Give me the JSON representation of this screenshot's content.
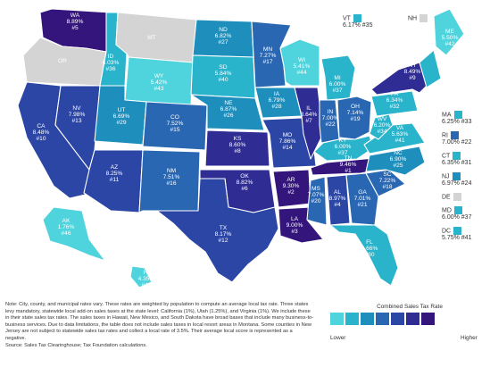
{
  "colors": {
    "c1": "#4fd3dc",
    "c2": "#29b4cb",
    "c3": "#1e8fbc",
    "c4": "#2a67b3",
    "c5": "#2c46a6",
    "c6": "#2f2c93",
    "c7": "#34157b",
    "none": "#d4d4d4",
    "bg": "#ffffff"
  },
  "states": [
    {
      "abbr": "WA",
      "rate": "8.89%",
      "rank": "#5"
    },
    {
      "abbr": "OR",
      "rate": "",
      "rank": ""
    },
    {
      "abbr": "CA",
      "rate": "8.48%",
      "rank": "#10"
    },
    {
      "abbr": "NV",
      "rate": "7.98%",
      "rank": "#13"
    },
    {
      "abbr": "ID",
      "rate": "6.03%",
      "rank": "#36"
    },
    {
      "abbr": "MT",
      "rate": "",
      "rank": ""
    },
    {
      "abbr": "WY",
      "rate": "5.42%",
      "rank": "#43"
    },
    {
      "abbr": "UT",
      "rate": "6.69%",
      "rank": "#29"
    },
    {
      "abbr": "AZ",
      "rate": "8.25%",
      "rank": "#11"
    },
    {
      "abbr": "CO",
      "rate": "7.52%",
      "rank": "#15"
    },
    {
      "abbr": "NM",
      "rate": "7.51%",
      "rank": "#16"
    },
    {
      "abbr": "ND",
      "rate": "6.82%",
      "rank": "#27"
    },
    {
      "abbr": "SD",
      "rate": "5.84%",
      "rank": "#40"
    },
    {
      "abbr": "NE",
      "rate": "6.87%",
      "rank": "#26"
    },
    {
      "abbr": "KS",
      "rate": "8.60%",
      "rank": "#8"
    },
    {
      "abbr": "OK",
      "rate": "8.82%",
      "rank": "#6"
    },
    {
      "abbr": "TX",
      "rate": "8.17%",
      "rank": "#12"
    },
    {
      "abbr": "MN",
      "rate": "7.27%",
      "rank": "#17"
    },
    {
      "abbr": "IA",
      "rate": "6.79%",
      "rank": "#28"
    },
    {
      "abbr": "MO",
      "rate": "7.86%",
      "rank": "#14"
    },
    {
      "abbr": "AR",
      "rate": "9.30%",
      "rank": "#2"
    },
    {
      "abbr": "LA",
      "rate": "9.00%",
      "rank": "#3"
    },
    {
      "abbr": "WI",
      "rate": "5.41%",
      "rank": "#44"
    },
    {
      "abbr": "IL",
      "rate": "8.64%",
      "rank": "#7"
    },
    {
      "abbr": "MI",
      "rate": "6.00%",
      "rank": "#37"
    },
    {
      "abbr": "IN",
      "rate": "7.00%",
      "rank": "#22"
    },
    {
      "abbr": "OH",
      "rate": "7.14%",
      "rank": "#19"
    },
    {
      "abbr": "KY",
      "rate": "6.00%",
      "rank": "#37"
    },
    {
      "abbr": "TN",
      "rate": "9.46%",
      "rank": "#1"
    },
    {
      "abbr": "MS",
      "rate": "7.07%",
      "rank": "#20"
    },
    {
      "abbr": "AL",
      "rate": "8.97%",
      "rank": "#4"
    },
    {
      "abbr": "GA",
      "rate": "7.01%",
      "rank": "#21"
    },
    {
      "abbr": "FL",
      "rate": "6.66%",
      "rank": "#30"
    },
    {
      "abbr": "SC",
      "rate": "7.22%",
      "rank": "#18"
    },
    {
      "abbr": "NC",
      "rate": "6.90%",
      "rank": "#25"
    },
    {
      "abbr": "VA",
      "rate": "5.63%",
      "rank": "#41"
    },
    {
      "abbr": "WV",
      "rate": "6.20%",
      "rank": "#34"
    },
    {
      "abbr": "PA",
      "rate": "6.34%",
      "rank": "#32"
    },
    {
      "abbr": "NY",
      "rate": "8.49%",
      "rank": "#9"
    },
    {
      "abbr": "ME",
      "rate": "5.50%",
      "rank": "#42"
    },
    {
      "abbr": "AK",
      "rate": "1.76%",
      "rank": "#46"
    },
    {
      "abbr": "HI",
      "rate": "4.35%",
      "rank": "#45"
    }
  ],
  "side_states": [
    {
      "abbr": "VT",
      "rate": "6.17% #35"
    },
    {
      "abbr": "NH",
      "rate": ""
    },
    {
      "abbr": "MA",
      "rate": "6.25% #33"
    },
    {
      "abbr": "RI",
      "rate": "7.00% #22"
    },
    {
      "abbr": "CT",
      "rate": "6.35% #31"
    },
    {
      "abbr": "NJ",
      "rate": "6.97% #24"
    },
    {
      "abbr": "DE",
      "rate": ""
    },
    {
      "abbr": "MD",
      "rate": "6.00% #37"
    },
    {
      "abbr": "DC",
      "rate": "5.75% #41"
    }
  ],
  "legend": {
    "title": "Combined Sales Tax Rate",
    "low": "Lower",
    "high": "Higher"
  },
  "note": "Note: City, county, and municipal rates vary. These rates are weighted by population to compute an average local tax rate. Three states levy mandatory, statewide local add-on sales taxes at the state level: California (1%), Utah (1.25%), and Virginia (1%). We include these in their state sales tax rates. The sales taxes in Hawaii, New Mexico, and South Dakota have broad bases that include many business-to-business services. Due to data limitations, the table does not include sales taxes in local resort areas in Montana. Some counties in New Jersey are not subject to statewide sales tax rates and collect a local rate of 3.5%. Their average local score is represented as a negative.",
  "source": "Source: Sales Tax Clearinghouse; Tax Foundation calculations."
}
